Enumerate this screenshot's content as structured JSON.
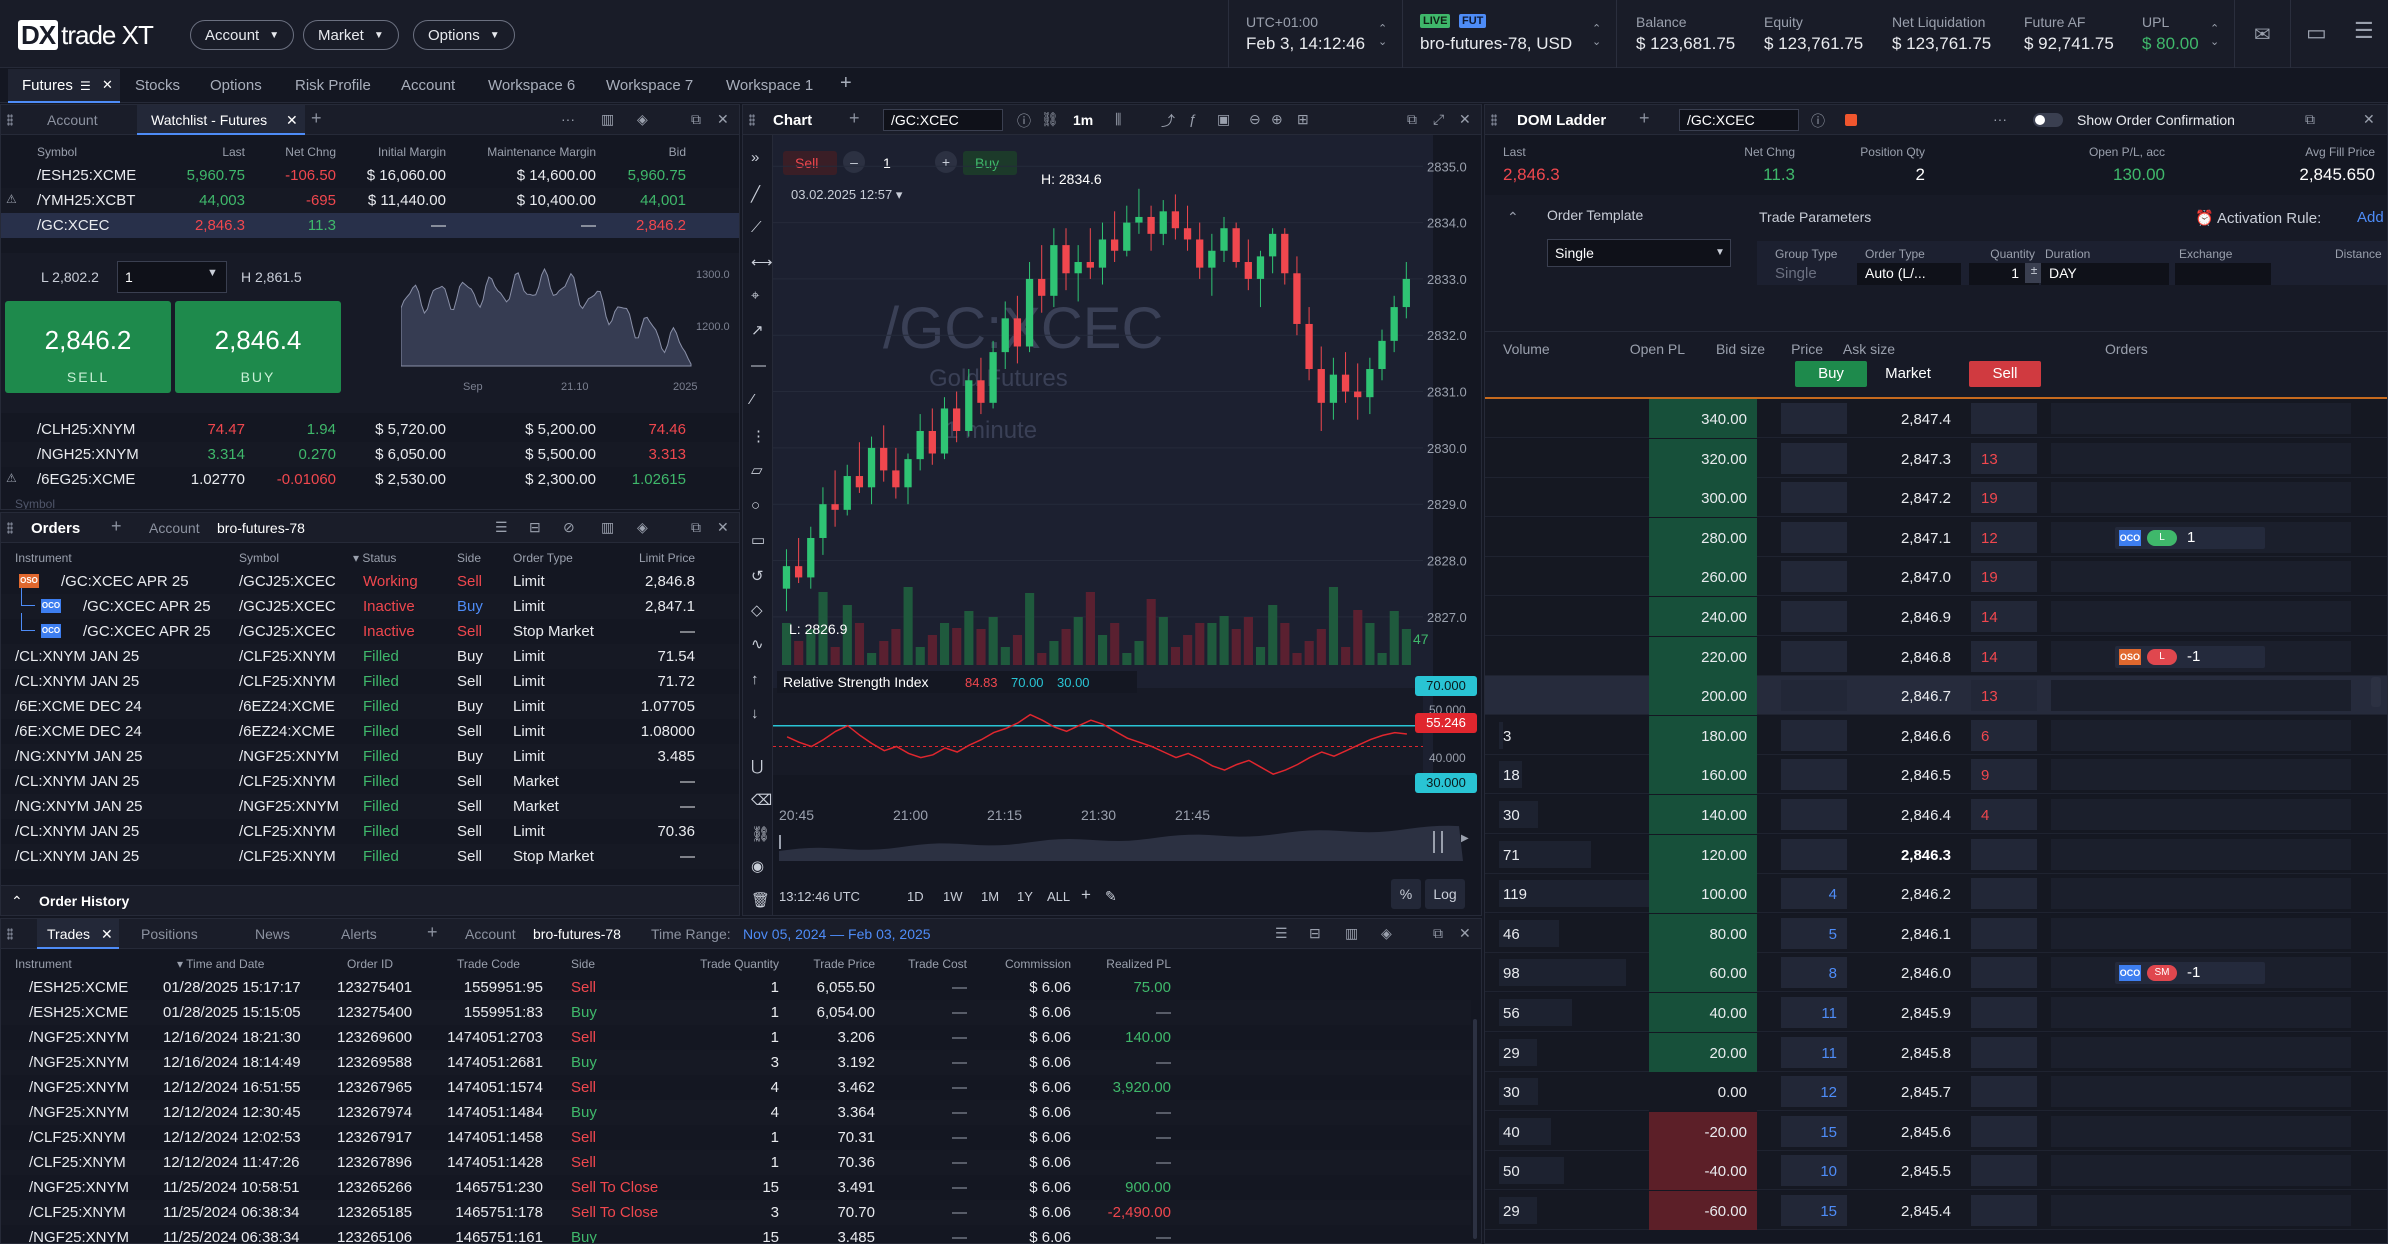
{
  "app": {
    "logo_dx": "DX",
    "logo_text": "trade XT"
  },
  "topmenu": [
    "Account",
    "Market",
    "Options"
  ],
  "topinfo": {
    "tz": "UTC+01:00",
    "datetime": "Feb 3, 14:12:46",
    "live": "LIVE",
    "fut": "FUT",
    "account": "bro-futures-78, USD",
    "balance_l": "Balance",
    "balance": "$ 123,681.75",
    "equity_l": "Equity",
    "equity": "$ 123,761.75",
    "netliq_l": "Net Liquidation",
    "netliq": "$ 123,761.75",
    "futaf_l": "Future AF",
    "futaf": "$ 92,741.75",
    "upl_l": "UPL",
    "upl": "$ 80.00"
  },
  "workspace_tabs": [
    "Futures",
    "Stocks",
    "Options",
    "Risk Profile",
    "Account",
    "Workspace 6",
    "Workspace 7",
    "Workspace 1"
  ],
  "watch": {
    "tab1": "Account",
    "tab2": "Watchlist - Futures",
    "headers": [
      "Symbol",
      "Last",
      "Net Chng",
      "Initial Margin",
      "Maintenance Margin",
      "Bid"
    ],
    "rows": [
      {
        "sym": "/ESH25:XCME",
        "last": "5,960.75",
        "chg": "-106.50",
        "im": "$ 16,060.00",
        "mm": "$ 14,600.00",
        "bid": "5,960.75",
        "lc": "green",
        "cc": "red",
        "bc": "green"
      },
      {
        "sym": "/YMH25:XCBT",
        "last": "44,003",
        "chg": "-695",
        "im": "$ 11,440.00",
        "mm": "$ 10,400.00",
        "bid": "44,001",
        "lc": "green",
        "cc": "red",
        "bc": "green"
      },
      {
        "sym": "/GC:XCEC",
        "last": "2,846.3",
        "chg": "11.3",
        "im": "—",
        "mm": "—",
        "bid": "2,846.2",
        "lc": "red",
        "cc": "green",
        "bc": "red"
      }
    ],
    "low": "L 2,802.2",
    "qty": "1",
    "high": "H 2,861.5",
    "sell_price": "2,846.2",
    "sell": "SELL",
    "buy_price": "2,846.4",
    "buy": "BUY",
    "mini_y": [
      "1300.0",
      "1200.0"
    ],
    "mini_x": [
      "Sep",
      "21.10",
      "2025"
    ],
    "rows2": [
      {
        "sym": "/CLH25:XNYM",
        "last": "74.47",
        "chg": "1.94",
        "im": "$ 5,720.00",
        "mm": "$ 5,200.00",
        "bid": "74.46",
        "lc": "red",
        "cc": "green",
        "bc": "red"
      },
      {
        "sym": "/NGH25:XNYM",
        "last": "3.314",
        "chg": "0.270",
        "im": "$ 6,050.00",
        "mm": "$ 5,500.00",
        "bid": "3.313",
        "lc": "green",
        "cc": "green",
        "bc": "red"
      },
      {
        "sym": "/6EG25:XCME",
        "last": "1.02770",
        "chg": "-0.01060",
        "im": "$ 2,530.00",
        "mm": "$ 2,300.00",
        "bid": "1.02615",
        "lc": "#e9ebef",
        "cc": "red",
        "bc": "green"
      }
    ],
    "foot": "Symbol"
  },
  "orders": {
    "title": "Orders",
    "acct_l": "Account",
    "acct": "bro-futures-78",
    "headers": [
      "Instrument",
      "Symbol",
      "Status",
      "Side",
      "Order Type",
      "Limit Price"
    ],
    "rows": [
      {
        "tag": "OSO",
        "ins": "/GC:XCEC  APR 25",
        "sym": "/GCJ25:XCEC",
        "st": "Working",
        "side": "Sell",
        "type": "Limit",
        "price": "2,846.8",
        "sc": "red",
        "dc": "red"
      },
      {
        "tag": "OCO",
        "ins": "/GC:XCEC  APR 25",
        "sym": "/GCJ25:XCEC",
        "st": "Inactive",
        "side": "Buy",
        "type": "Limit",
        "price": "2,847.1",
        "sc": "red",
        "dc": "blue"
      },
      {
        "tag": "OCO",
        "ins": "/GC:XCEC  APR 25",
        "sym": "/GCJ25:XCEC",
        "st": "Inactive",
        "side": "Sell",
        "type": "Stop Market",
        "price": "—",
        "sc": "red",
        "dc": "red"
      },
      {
        "tag": "",
        "ins": "/CL:XNYM  JAN 25",
        "sym": "/CLF25:XNYM",
        "st": "Filled",
        "side": "Buy",
        "type": "Limit",
        "price": "71.54",
        "sc": "green",
        "dc": "e"
      },
      {
        "tag": "",
        "ins": "/CL:XNYM  JAN 25",
        "sym": "/CLF25:XNYM",
        "st": "Filled",
        "side": "Sell",
        "type": "Limit",
        "price": "71.72",
        "sc": "green",
        "dc": "e"
      },
      {
        "tag": "",
        "ins": "/6E:XCME  DEC 24",
        "sym": "/6EZ24:XCME",
        "st": "Filled",
        "side": "Buy",
        "type": "Limit",
        "price": "1.07705",
        "sc": "green",
        "dc": "e"
      },
      {
        "tag": "",
        "ins": "/6E:XCME  DEC 24",
        "sym": "/6EZ24:XCME",
        "st": "Filled",
        "side": "Sell",
        "type": "Limit",
        "price": "1.08000",
        "sc": "green",
        "dc": "e"
      },
      {
        "tag": "",
        "ins": "/NG:XNYM  JAN 25",
        "sym": "/NGF25:XNYM",
        "st": "Filled",
        "side": "Buy",
        "type": "Limit",
        "price": "3.485",
        "sc": "green",
        "dc": "e"
      },
      {
        "tag": "",
        "ins": "/CL:XNYM  JAN 25",
        "sym": "/CLF25:XNYM",
        "st": "Filled",
        "side": "Sell",
        "type": "Market",
        "price": "—",
        "sc": "green",
        "dc": "e"
      },
      {
        "tag": "",
        "ins": "/NG:XNYM  JAN 25",
        "sym": "/NGF25:XNYM",
        "st": "Filled",
        "side": "Sell",
        "type": "Market",
        "price": "—",
        "sc": "green",
        "dc": "e"
      },
      {
        "tag": "",
        "ins": "/CL:XNYM  JAN 25",
        "sym": "/CLF25:XNYM",
        "st": "Filled",
        "side": "Sell",
        "type": "Limit",
        "price": "70.36",
        "sc": "green",
        "dc": "e"
      },
      {
        "tag": "",
        "ins": "/CL:XNYM  JAN 25",
        "sym": "/CLF25:XNYM",
        "st": "Filled",
        "side": "Sell",
        "type": "Stop Market",
        "price": "—",
        "sc": "green",
        "dc": "e"
      }
    ],
    "history": "Order History"
  },
  "trades": {
    "tabs": [
      "Trades",
      "Positions",
      "News",
      "Alerts"
    ],
    "acct_l": "Account",
    "acct": "bro-futures-78",
    "range_l": "Time Range:",
    "range": "Nov 05, 2024 — Feb 03, 2025",
    "headers": [
      "Instrument",
      "Time and Date",
      "Order ID",
      "Trade Code",
      "Side",
      "Trade Quantity",
      "Trade Price",
      "Trade Cost",
      "Commission",
      "Realized PL"
    ],
    "rows": [
      {
        "ins": "/ESH25:XCME",
        "t": "01/28/2025 15:17:17",
        "id": "123275401",
        "code": "1559951:95",
        "side": "Sell",
        "q": "1",
        "p": "6,055.50",
        "c": "—",
        "com": "$ 6.06",
        "pl": "75.00",
        "sc": "red"
      },
      {
        "ins": "/ESH25:XCME",
        "t": "01/28/2025 15:15:05",
        "id": "123275400",
        "code": "1559951:83",
        "side": "Buy",
        "q": "1",
        "p": "6,054.00",
        "c": "—",
        "com": "$ 6.06",
        "pl": "—",
        "sc": "green"
      },
      {
        "ins": "/NGF25:XNYM",
        "t": "12/16/2024 18:21:30",
        "id": "123269600",
        "code": "1474051:2703",
        "side": "Sell",
        "q": "1",
        "p": "3.206",
        "c": "—",
        "com": "$ 6.06",
        "pl": "140.00",
        "sc": "red"
      },
      {
        "ins": "/NGF25:XNYM",
        "t": "12/16/2024 18:14:49",
        "id": "123269588",
        "code": "1474051:2681",
        "side": "Buy",
        "q": "3",
        "p": "3.192",
        "c": "—",
        "com": "$ 6.06",
        "pl": "—",
        "sc": "green"
      },
      {
        "ins": "/NGF25:XNYM",
        "t": "12/12/2024 16:51:55",
        "id": "123267965",
        "code": "1474051:1574",
        "side": "Sell",
        "q": "4",
        "p": "3.462",
        "c": "—",
        "com": "$ 6.06",
        "pl": "3,920.00",
        "sc": "red"
      },
      {
        "ins": "/NGF25:XNYM",
        "t": "12/12/2024 12:30:45",
        "id": "123267974",
        "code": "1474051:1484",
        "side": "Buy",
        "q": "4",
        "p": "3.364",
        "c": "—",
        "com": "$ 6.06",
        "pl": "—",
        "sc": "green"
      },
      {
        "ins": "/CLF25:XNYM",
        "t": "12/12/2024 12:02:53",
        "id": "123267917",
        "code": "1474051:1458",
        "side": "Sell",
        "q": "1",
        "p": "70.31",
        "c": "—",
        "com": "$ 6.06",
        "pl": "—",
        "sc": "red"
      },
      {
        "ins": "/CLF25:XNYM",
        "t": "12/12/2024 11:47:26",
        "id": "123267896",
        "code": "1474051:1428",
        "side": "Sell",
        "q": "1",
        "p": "70.36",
        "c": "—",
        "com": "$ 6.06",
        "pl": "—",
        "sc": "red"
      },
      {
        "ins": "/NGF25:XNYM",
        "t": "11/25/2024 10:58:51",
        "id": "123265266",
        "code": "1465751:230",
        "side": "Sell To Close",
        "q": "15",
        "p": "3.491",
        "c": "—",
        "com": "$ 6.06",
        "pl": "900.00",
        "sc": "red"
      },
      {
        "ins": "/CLF25:XNYM",
        "t": "11/25/2024 06:38:34",
        "id": "123265185",
        "code": "1465751:178",
        "side": "Sell To Close",
        "q": "3",
        "p": "70.70",
        "c": "—",
        "com": "$ 6.06",
        "pl": "-2,490.00",
        "sc": "red"
      },
      {
        "ins": "/NGF25:XNYM",
        "t": "11/25/2024 06:38:34",
        "id": "123265106",
        "code": "1465751:161",
        "side": "Buy",
        "q": "15",
        "p": "3.485",
        "c": "—",
        "com": "$ 6.06",
        "pl": "—",
        "sc": "green"
      }
    ]
  },
  "chart": {
    "title": "Chart",
    "symbol": "/GC:XCEC",
    "interval": "1m",
    "sell": "Sell",
    "qty": "1",
    "buy": "Buy",
    "date": "03.02.2025 12:57",
    "watermark_sym": "/GC:XCEC",
    "watermark_name": "Gold Futures",
    "watermark_int": "1 minute",
    "high_label": "H: 2834.6",
    "low_label": "L: 2826.9",
    "vol_label": "47",
    "rsi_label": "Relative Strength Index",
    "rsi_v1": "84.83",
    "rsi_v2": "70.00",
    "rsi_v3": "30.00",
    "rsi_tag70": "70.000",
    "rsi_tagcur": "55.246",
    "rsi_tag50": "50.000",
    "rsi_tick40": "40.000",
    "rsi_tag30": "30.000",
    "footer_time": "13:12:46 UTC",
    "ranges": [
      "1D",
      "1W",
      "1M",
      "1Y",
      "ALL"
    ],
    "pct": "%",
    "log": "Log"
  },
  "chart_data": {
    "type": "candlestick",
    "ylim": [
      2826.5,
      2835.2
    ],
    "yticks": [
      "2835.0",
      "2834.0",
      "2833.0",
      "2832.0",
      "2831.0",
      "2830.0",
      "2829.0",
      "2828.0",
      "2827.0"
    ],
    "xticks": [
      "20:45",
      "21:00",
      "21:15",
      "21:30",
      "21:45"
    ],
    "candles": [
      [
        2827.5,
        2828.2,
        2827.1,
        2827.9
      ],
      [
        2827.9,
        2828.4,
        2827.6,
        2827.7
      ],
      [
        2827.7,
        2828.6,
        2827.5,
        2828.4
      ],
      [
        2828.4,
        2829.3,
        2828.1,
        2829.0
      ],
      [
        2829.0,
        2829.6,
        2828.6,
        2828.9
      ],
      [
        2828.9,
        2829.7,
        2828.8,
        2829.5
      ],
      [
        2829.5,
        2830.1,
        2829.2,
        2829.3
      ],
      [
        2829.3,
        2830.2,
        2829.0,
        2830.0
      ],
      [
        2830.0,
        2830.4,
        2829.4,
        2829.6
      ],
      [
        2829.6,
        2830.0,
        2829.1,
        2829.3
      ],
      [
        2829.3,
        2829.9,
        2829.0,
        2829.8
      ],
      [
        2829.8,
        2830.6,
        2829.6,
        2830.3
      ],
      [
        2830.3,
        2830.7,
        2829.7,
        2829.9
      ],
      [
        2829.9,
        2830.9,
        2829.8,
        2830.7
      ],
      [
        2830.7,
        2831.0,
        2830.1,
        2830.3
      ],
      [
        2830.3,
        2831.4,
        2830.2,
        2831.2
      ],
      [
        2831.2,
        2831.6,
        2830.6,
        2830.8
      ],
      [
        2830.8,
        2831.9,
        2830.7,
        2831.7
      ],
      [
        2831.7,
        2832.6,
        2831.4,
        2832.3
      ],
      [
        2832.3,
        2832.7,
        2831.5,
        2831.8
      ],
      [
        2831.8,
        2833.3,
        2831.7,
        2833.0
      ],
      [
        2833.0,
        2833.6,
        2832.4,
        2832.7
      ],
      [
        2832.7,
        2833.9,
        2832.5,
        2833.6
      ],
      [
        2833.6,
        2833.9,
        2832.8,
        2833.1
      ],
      [
        2833.1,
        2833.6,
        2832.6,
        2833.3
      ],
      [
        2833.3,
        2833.9,
        2833.0,
        2833.2
      ],
      [
        2833.2,
        2834.0,
        2832.9,
        2833.7
      ],
      [
        2833.7,
        2834.2,
        2833.3,
        2833.5
      ],
      [
        2833.5,
        2834.3,
        2833.4,
        2834.0
      ],
      [
        2834.0,
        2834.6,
        2833.8,
        2834.1
      ],
      [
        2834.1,
        2834.3,
        2833.5,
        2833.8
      ],
      [
        2833.8,
        2834.4,
        2833.6,
        2834.2
      ],
      [
        2834.2,
        2834.5,
        2833.7,
        2833.9
      ],
      [
        2833.9,
        2834.3,
        2833.5,
        2833.7
      ],
      [
        2833.7,
        2834.0,
        2833.0,
        2833.2
      ],
      [
        2833.2,
        2833.8,
        2832.7,
        2833.5
      ],
      [
        2833.5,
        2834.1,
        2833.3,
        2833.9
      ],
      [
        2833.9,
        2834.0,
        2833.2,
        2833.3
      ],
      [
        2833.3,
        2833.7,
        2832.8,
        2833.0
      ],
      [
        2833.0,
        2833.5,
        2832.5,
        2833.4
      ],
      [
        2833.4,
        2833.9,
        2833.1,
        2833.8
      ],
      [
        2833.8,
        2833.9,
        2832.9,
        2833.1
      ],
      [
        2833.1,
        2833.4,
        2832.0,
        2832.2
      ],
      [
        2832.2,
        2832.5,
        2831.2,
        2831.4
      ],
      [
        2831.4,
        2831.8,
        2830.3,
        2830.8
      ],
      [
        2830.8,
        2831.6,
        2830.5,
        2831.3
      ],
      [
        2831.3,
        2831.7,
        2830.8,
        2831.0
      ],
      [
        2831.0,
        2831.5,
        2830.5,
        2830.9
      ],
      [
        2830.9,
        2831.6,
        2830.6,
        2831.4
      ],
      [
        2831.4,
        2832.1,
        2831.2,
        2831.9
      ],
      [
        2831.9,
        2832.7,
        2831.7,
        2832.5
      ],
      [
        2832.5,
        2833.3,
        2832.3,
        2833.0
      ]
    ],
    "rsi": [
      62,
      58,
      55,
      60,
      66,
      70,
      63,
      57,
      52,
      55,
      50,
      47,
      49,
      54,
      51,
      56,
      60,
      65,
      68,
      72,
      78,
      74,
      69,
      66,
      70,
      74,
      71,
      66,
      61,
      58,
      55,
      51,
      47,
      50,
      46,
      41,
      38,
      42,
      45,
      40,
      35,
      38,
      42,
      47,
      51,
      48,
      52,
      56,
      60,
      63,
      65,
      64
    ]
  },
  "dom": {
    "title": "DOM Ladder",
    "symbol": "/GC:XCEC",
    "show_confirm": "Show Order Confirmation",
    "hdr": {
      "last_l": "Last",
      "last": "2,846.3",
      "chg_l": "Net Chng",
      "chg": "11.3",
      "pos_l": "Position Qty",
      "pos": "2",
      "opl_l": "Open P/L, acc",
      "opl": "130.00",
      "avg_l": "Avg Fill Price",
      "avg": "2,845.650"
    },
    "tmpl_l": "Order Template",
    "tmpl": "Single",
    "params_l": "Trade Parameters",
    "activation": "Activation Rule:",
    "add": "Add",
    "param_headers": [
      "Group Type",
      "Order Type",
      "Quantity",
      "Duration",
      "Exchange",
      "Distance"
    ],
    "param_vals": [
      "Single",
      "Auto (L/...",
      "1",
      "DAY",
      "",
      ""
    ],
    "cols": [
      "Volume",
      "Open PL",
      "Bid size",
      "Price",
      "Ask size",
      "Orders"
    ],
    "buy": "Buy",
    "market": "Market",
    "sell": "Sell",
    "rows": [
      {
        "vol": "",
        "pl": "340.00",
        "bid": "",
        "price": "2,847.4",
        "ask": "",
        "ord": ""
      },
      {
        "vol": "",
        "pl": "320.00",
        "bid": "",
        "price": "2,847.3",
        "ask": "13",
        "ord": ""
      },
      {
        "vol": "",
        "pl": "300.00",
        "bid": "",
        "price": "2,847.2",
        "ask": "19",
        "ord": ""
      },
      {
        "vol": "",
        "pl": "280.00",
        "bid": "",
        "price": "2,847.1",
        "ask": "12",
        "ord": "OCO|L|1"
      },
      {
        "vol": "",
        "pl": "260.00",
        "bid": "",
        "price": "2,847.0",
        "ask": "19",
        "ord": ""
      },
      {
        "vol": "",
        "pl": "240.00",
        "bid": "",
        "price": "2,846.9",
        "ask": "14",
        "ord": ""
      },
      {
        "vol": "",
        "pl": "220.00",
        "bid": "",
        "price": "2,846.8",
        "ask": "14",
        "ord": "OSO|L|-1"
      },
      {
        "vol": "",
        "pl": "200.00",
        "bid": "",
        "price": "2,846.7",
        "ask": "13",
        "ord": ""
      },
      {
        "vol": "3",
        "pl": "180.00",
        "bid": "",
        "price": "2,846.6",
        "ask": "6",
        "ord": ""
      },
      {
        "vol": "18",
        "pl": "160.00",
        "bid": "",
        "price": "2,846.5",
        "ask": "9",
        "ord": ""
      },
      {
        "vol": "30",
        "pl": "140.00",
        "bid": "",
        "price": "2,846.4",
        "ask": "4",
        "ord": ""
      },
      {
        "vol": "71",
        "pl": "120.00",
        "bid": "",
        "price": "2,846.3",
        "ask": "",
        "ord": ""
      },
      {
        "vol": "119",
        "pl": "100.00",
        "bid": "4",
        "price": "2,846.2",
        "ask": "",
        "ord": ""
      },
      {
        "vol": "46",
        "pl": "80.00",
        "bid": "5",
        "price": "2,846.1",
        "ask": "",
        "ord": ""
      },
      {
        "vol": "98",
        "pl": "60.00",
        "bid": "8",
        "price": "2,846.0",
        "ask": "",
        "ord": "OCO|SM|-1"
      },
      {
        "vol": "56",
        "pl": "40.00",
        "bid": "11",
        "price": "2,845.9",
        "ask": "",
        "ord": ""
      },
      {
        "vol": "29",
        "pl": "20.00",
        "bid": "11",
        "price": "2,845.8",
        "ask": "",
        "ord": ""
      },
      {
        "vol": "30",
        "pl": "0.00",
        "bid": "12",
        "price": "2,845.7",
        "ask": "",
        "ord": ""
      },
      {
        "vol": "40",
        "pl": "-20.00",
        "bid": "15",
        "price": "2,845.6",
        "ask": "",
        "ord": ""
      },
      {
        "vol": "50",
        "pl": "-40.00",
        "bid": "10",
        "price": "2,845.5",
        "ask": "",
        "ord": ""
      },
      {
        "vol": "29",
        "pl": "-60.00",
        "bid": "15",
        "price": "2,845.4",
        "ask": "",
        "ord": ""
      }
    ]
  }
}
